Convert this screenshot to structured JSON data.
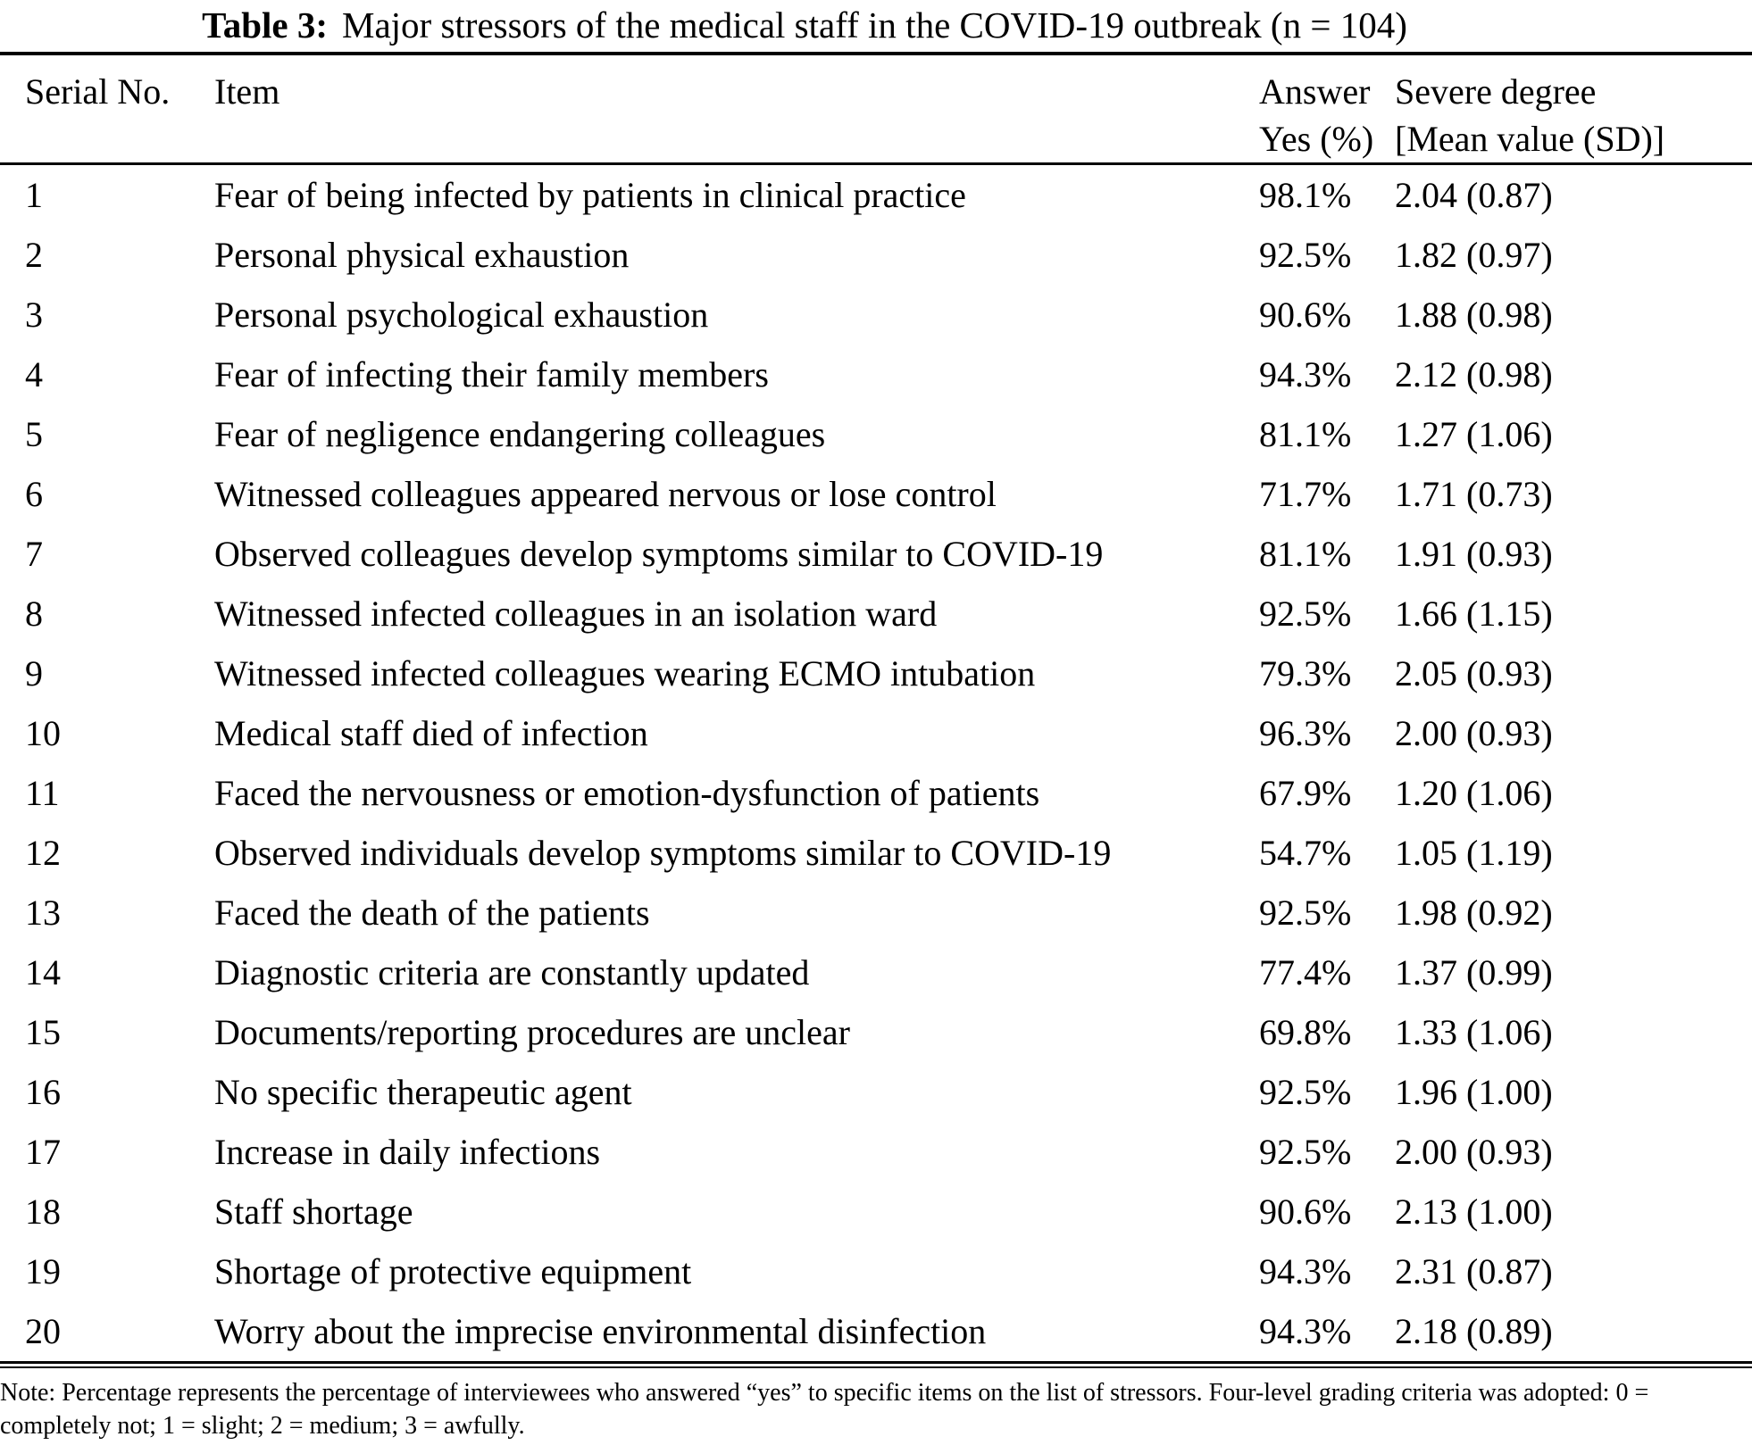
{
  "title": {
    "label": "Table 3:",
    "text": "Major stressors of the medical staff in the COVID-19 outbreak (n = 104)"
  },
  "table": {
    "columns": {
      "serial": "Serial No.",
      "item": "Item",
      "answer_line1": "Answer",
      "answer_line2": "Yes (%)",
      "severe_line1": "Severe degree",
      "severe_line2": "[Mean value (SD)]"
    },
    "rows": [
      {
        "no": "1",
        "item": "Fear of being infected by patients in clinical practice",
        "yes": "98.1%",
        "severe": "2.04 (0.87)"
      },
      {
        "no": "2",
        "item": "Personal physical exhaustion",
        "yes": "92.5%",
        "severe": "1.82 (0.97)"
      },
      {
        "no": "3",
        "item": "Personal psychological exhaustion",
        "yes": "90.6%",
        "severe": "1.88 (0.98)"
      },
      {
        "no": "4",
        "item": "Fear of infecting their family members",
        "yes": "94.3%",
        "severe": "2.12 (0.98)"
      },
      {
        "no": "5",
        "item": "Fear of negligence endangering colleagues",
        "yes": "81.1%",
        "severe": "1.27 (1.06)"
      },
      {
        "no": "6",
        "item": "Witnessed colleagues appeared nervous or lose control",
        "yes": "71.7%",
        "severe": "1.71 (0.73)"
      },
      {
        "no": "7",
        "item": "Observed colleagues develop symptoms similar to COVID-19",
        "yes": "81.1%",
        "severe": "1.91 (0.93)"
      },
      {
        "no": "8",
        "item": "Witnessed infected colleagues in an isolation ward",
        "yes": "92.5%",
        "severe": "1.66 (1.15)"
      },
      {
        "no": "9",
        "item": "Witnessed infected colleagues wearing ECMO intubation",
        "yes": "79.3%",
        "severe": "2.05 (0.93)"
      },
      {
        "no": "10",
        "item": "Medical staff died of infection",
        "yes": "96.3%",
        "severe": "2.00 (0.93)"
      },
      {
        "no": "11",
        "item": "Faced the nervousness or emotion-dysfunction of patients",
        "yes": "67.9%",
        "severe": "1.20 (1.06)"
      },
      {
        "no": "12",
        "item": "Observed individuals develop symptoms similar to COVID-19",
        "yes": "54.7%",
        "severe": "1.05 (1.19)"
      },
      {
        "no": "13",
        "item": "Faced the death of the patients",
        "yes": "92.5%",
        "severe": "1.98 (0.92)"
      },
      {
        "no": "14",
        "item": "Diagnostic criteria are constantly updated",
        "yes": "77.4%",
        "severe": "1.37 (0.99)"
      },
      {
        "no": "15",
        "item": "Documents/reporting procedures are unclear",
        "yes": "69.8%",
        "severe": "1.33 (1.06)"
      },
      {
        "no": "16",
        "item": "No specific therapeutic agent",
        "yes": "92.5%",
        "severe": "1.96 (1.00)"
      },
      {
        "no": "17",
        "item": "Increase in daily infections",
        "yes": "92.5%",
        "severe": "2.00 (0.93)"
      },
      {
        "no": "18",
        "item": "Staff shortage",
        "yes": "90.6%",
        "severe": "2.13 (1.00)"
      },
      {
        "no": "19",
        "item": "Shortage of protective equipment",
        "yes": "94.3%",
        "severe": "2.31 (0.87)"
      },
      {
        "no": "20",
        "item": "Worry about the imprecise environmental disinfection",
        "yes": "94.3%",
        "severe": "2.18 (0.89)"
      }
    ]
  },
  "note": "Note: Percentage represents the percentage of interviewees who answered “yes” to specific items on the list of stressors. Four-level grading criteria was adopted: 0 = completely not; 1 = slight; 2 = medium; 3 = awfully.",
  "colors": {
    "text": "#000000",
    "background": "#ffffff",
    "rule": "#000000"
  }
}
